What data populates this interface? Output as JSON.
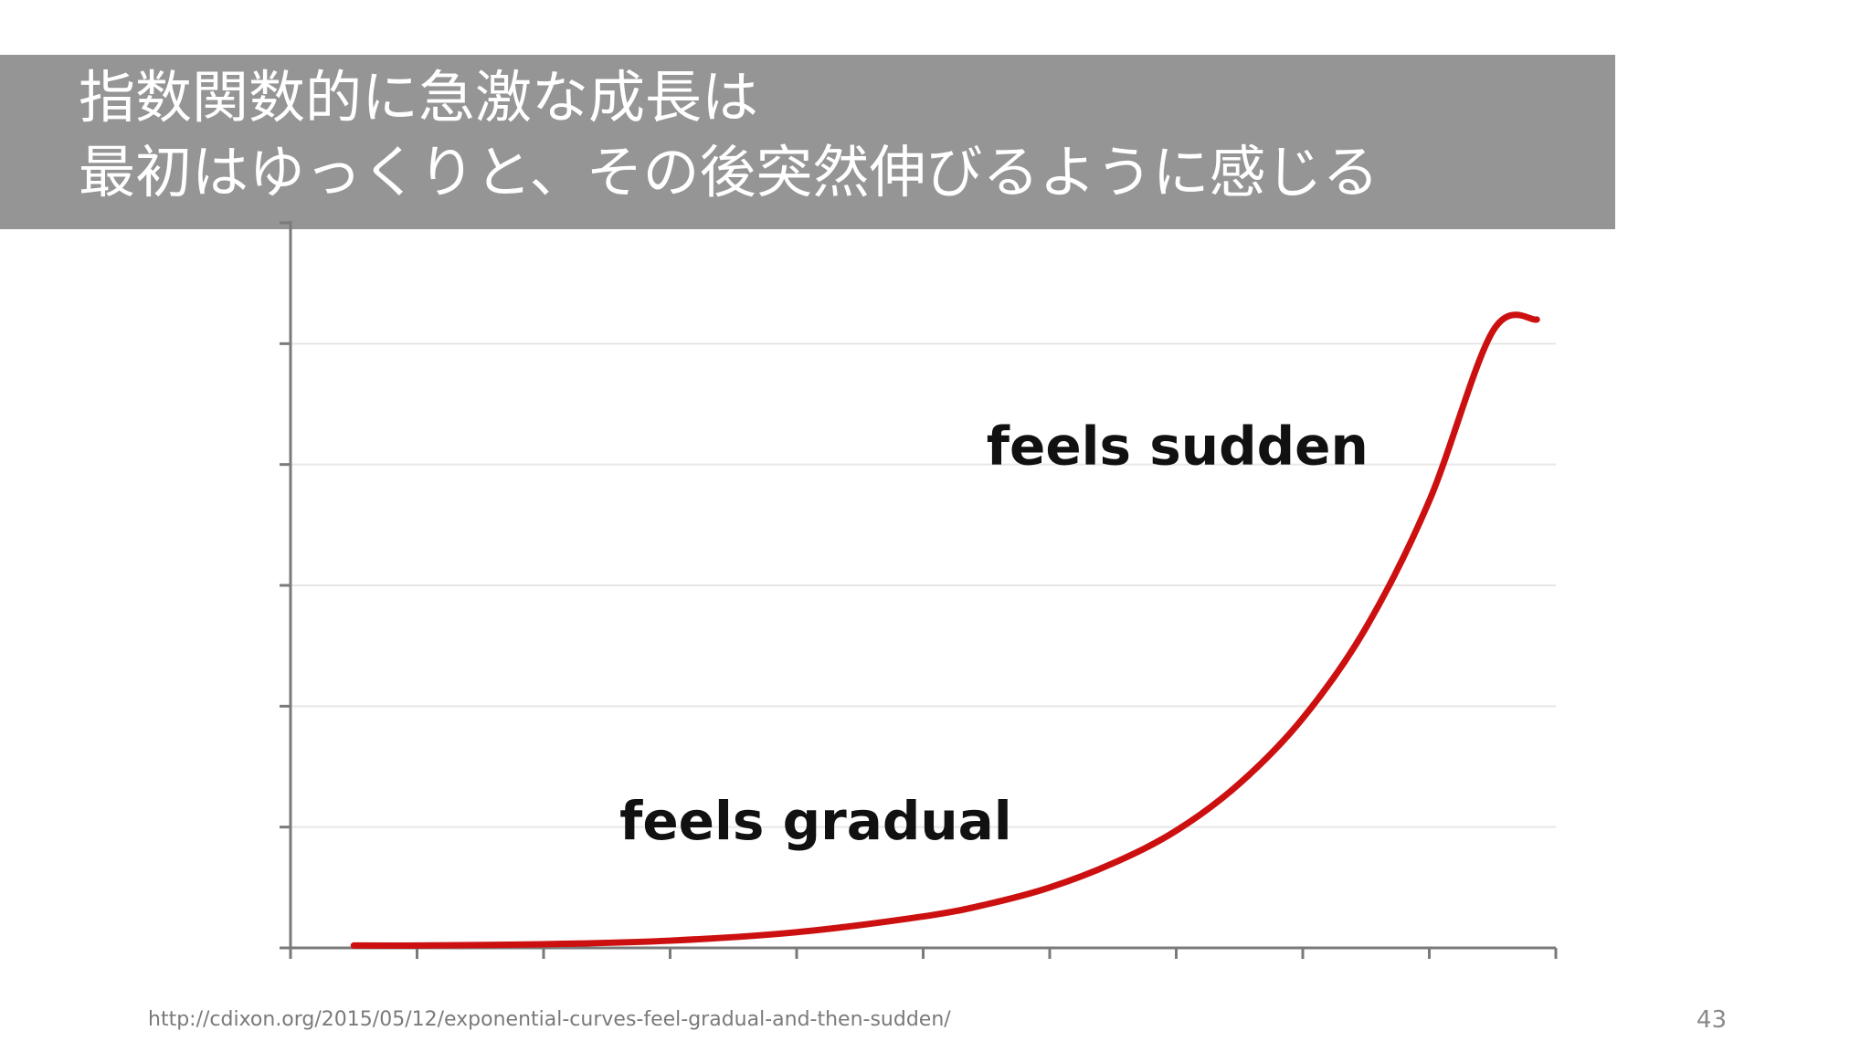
{
  "slide": {
    "title_line1": "指数関数的に急激な成長は",
    "title_line2": "最初はゆっくりと、その後突然伸びるように感じる",
    "source_url": "http://cdixon.org/2015/05/12/exponential-curves-feel-gradual-and-then-sudden/",
    "page_number": "43"
  },
  "colors": {
    "title_bar": "#959595",
    "curve": "#cc1010",
    "axis": "#7a7a7a",
    "grid": "#e6e6e6"
  },
  "chart_data": {
    "type": "line",
    "title": "",
    "xlabel": "",
    "ylabel": "",
    "grid": true,
    "x_ticks": 10,
    "y_ticks": 6,
    "xlim": [
      0,
      10
    ],
    "ylim": [
      0,
      6
    ],
    "series": [
      {
        "x": [
          0.5,
          1.0,
          2.0,
          3.0,
          4.0,
          5.0,
          5.5,
          6.0,
          6.5,
          7.0,
          7.5,
          8.0,
          8.5,
          9.0,
          9.5,
          9.85
        ],
        "y": [
          0.02,
          0.02,
          0.03,
          0.06,
          0.13,
          0.26,
          0.36,
          0.5,
          0.7,
          0.97,
          1.36,
          1.9,
          2.65,
          3.7,
          5.1,
          5.2
        ]
      }
    ],
    "annotations": [
      {
        "text": "feels sudden",
        "x": 5.5,
        "y": 4.0
      },
      {
        "text": "feels gradual",
        "x": 2.6,
        "y": 0.9
      }
    ]
  }
}
